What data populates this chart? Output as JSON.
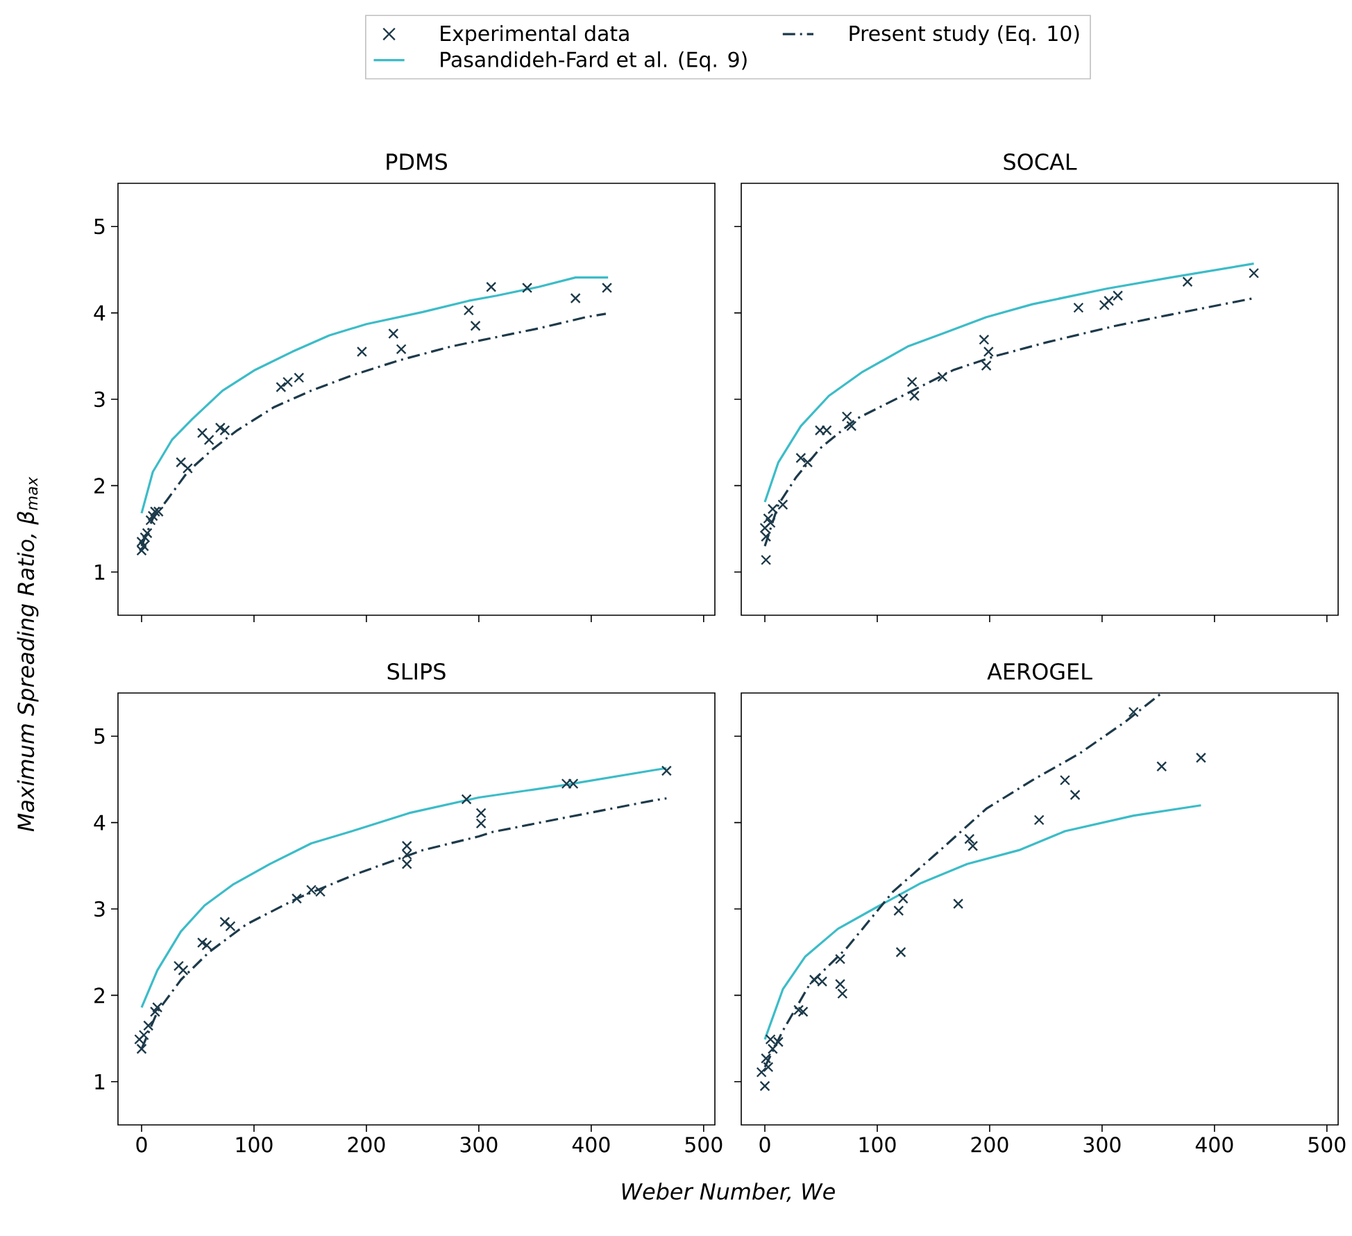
{
  "chart_data": [
    {
      "type": "scatter",
      "title": "PDMS",
      "xlabel": "Weber Number,  We",
      "ylabel": "Maximum Spreading Ratio, β$_{max}$",
      "legend": "top",
      "xlim": [
        -21,
        510
      ],
      "ylim": [
        0.5,
        5.5
      ],
      "xticks": [
        0,
        100,
        200,
        300,
        400,
        500
      ],
      "yticks": [
        1,
        2,
        3,
        4,
        5
      ],
      "tick_labels": "y",
      "series": [
        {
          "name": "Experimental data",
          "marker": "cross",
          "color": "#1d3a4a",
          "x": [
            0,
            2,
            3,
            5,
            0,
            8,
            12,
            15,
            10,
            35,
            41,
            54,
            60,
            70,
            74,
            124,
            130,
            140,
            196,
            224,
            231,
            291,
            297,
            311,
            343,
            386,
            414
          ],
          "values": [
            1.25,
            1.3,
            1.4,
            1.45,
            1.35,
            1.6,
            1.7,
            1.7,
            1.65,
            2.27,
            2.2,
            2.61,
            2.53,
            2.67,
            2.64,
            3.14,
            3.2,
            3.25,
            3.55,
            3.76,
            3.58,
            4.03,
            3.85,
            4.3,
            4.29,
            4.17,
            4.29
          ]
        },
        {
          "name": "Pasandideh-Fard et al. (Eq. 9)",
          "type": "line",
          "line_style": "solid",
          "color": "#3cbcc8",
          "x": [
            0,
            10,
            27,
            45,
            72,
            101,
            134,
            167,
            200,
            250,
            291,
            316,
            353,
            386,
            415
          ],
          "values": [
            1.68,
            2.16,
            2.53,
            2.77,
            3.1,
            3.34,
            3.55,
            3.74,
            3.87,
            4.01,
            4.14,
            4.2,
            4.3,
            4.41,
            4.41
          ]
        },
        {
          "name": "Present study (Eq. 10)",
          "type": "line",
          "line_style": "dashdot",
          "color": "#1d3a4a",
          "x": [
            0,
            10,
            23,
            41,
            64,
            85,
            118,
            151,
            188,
            229,
            275,
            312,
            353,
            395,
            413
          ],
          "values": [
            1.3,
            1.62,
            1.84,
            2.16,
            2.43,
            2.64,
            2.91,
            3.1,
            3.28,
            3.45,
            3.61,
            3.71,
            3.82,
            3.95,
            3.99
          ]
        }
      ]
    },
    {
      "type": "scatter",
      "title": "SOCAL",
      "xlim": [
        -21,
        510
      ],
      "ylim": [
        0.5,
        5.5
      ],
      "xticks": [
        0,
        100,
        200,
        300,
        400,
        500
      ],
      "yticks": [
        1,
        2,
        3,
        4,
        5
      ],
      "tick_labels": false,
      "series": [
        {
          "marker": "cross",
          "color": "#1d3a4a",
          "x": [
            1,
            0,
            3,
            7,
            16,
            1,
            5,
            32,
            38,
            49,
            55,
            73,
            77,
            131,
            133,
            158,
            195,
            199,
            197,
            279,
            302,
            306,
            314,
            376,
            435
          ],
          "values": [
            1.14,
            1.51,
            1.62,
            1.73,
            1.78,
            1.41,
            1.57,
            2.32,
            2.27,
            2.64,
            2.64,
            2.8,
            2.69,
            3.2,
            3.04,
            3.26,
            3.69,
            3.55,
            3.39,
            4.06,
            4.09,
            4.14,
            4.2,
            4.36,
            4.46
          ]
        },
        {
          "type": "line",
          "line_style": "solid",
          "color": "#3cbcc8",
          "x": [
            0,
            12,
            32,
            57,
            86,
            127,
            160,
            197,
            238,
            304,
            361,
            435
          ],
          "values": [
            1.81,
            2.27,
            2.69,
            3.04,
            3.31,
            3.61,
            3.77,
            3.95,
            4.1,
            4.28,
            4.41,
            4.57
          ]
        },
        {
          "type": "line",
          "line_style": "dashdot",
          "color": "#1d3a4a",
          "x": [
            0,
            12,
            28,
            49,
            81,
            127,
            168,
            205,
            251,
            312,
            361,
            435
          ],
          "values": [
            1.3,
            1.78,
            2.1,
            2.43,
            2.77,
            3.07,
            3.34,
            3.5,
            3.66,
            3.85,
            3.98,
            4.17
          ]
        }
      ]
    },
    {
      "type": "scatter",
      "title": "SLIPS",
      "xlim": [
        -21,
        510
      ],
      "ylim": [
        0.5,
        5.5
      ],
      "xticks": [
        0,
        100,
        200,
        300,
        400,
        500
      ],
      "yticks": [
        1,
        2,
        3,
        4,
        5
      ],
      "series": [
        {
          "marker": "cross",
          "color": "#1d3a4a",
          "x": [
            0,
            -2,
            2,
            6,
            12,
            14,
            33,
            37,
            54,
            58,
            74,
            79,
            138,
            151,
            159,
            236,
            236,
            236,
            289,
            302,
            302,
            378,
            384,
            467
          ],
          "values": [
            1.38,
            1.49,
            1.54,
            1.65,
            1.81,
            1.86,
            2.34,
            2.29,
            2.61,
            2.58,
            2.85,
            2.8,
            3.12,
            3.22,
            3.2,
            3.73,
            3.63,
            3.52,
            4.27,
            4.11,
            3.99,
            4.45,
            4.45,
            4.6
          ]
        },
        {
          "type": "line",
          "line_style": "solid",
          "color": "#3cbcc8",
          "x": [
            0,
            14,
            35,
            56,
            81,
            114,
            151,
            192,
            238,
            300,
            374,
            457,
            467
          ],
          "values": [
            1.86,
            2.29,
            2.74,
            3.04,
            3.28,
            3.52,
            3.76,
            3.92,
            4.11,
            4.29,
            4.43,
            4.61,
            4.63
          ]
        },
        {
          "type": "line",
          "line_style": "dashdot",
          "color": "#1d3a4a",
          "x": [
            0,
            14,
            35,
            60,
            93,
            138,
            192,
            250,
            300,
            312,
            374,
            457,
            467
          ],
          "values": [
            1.38,
            1.81,
            2.18,
            2.5,
            2.82,
            3.12,
            3.41,
            3.68,
            3.84,
            3.89,
            4.05,
            4.26,
            4.28
          ]
        }
      ]
    },
    {
      "type": "scatter",
      "title": "AEROGEL",
      "xlim": [
        -21,
        510
      ],
      "ylim": [
        0.5,
        5.5
      ],
      "xticks": [
        0,
        100,
        200,
        300,
        400,
        500
      ],
      "yticks": [
        1,
        2,
        3,
        4,
        5
      ],
      "tick_labels": "x",
      "series": [
        {
          "marker": "cross",
          "color": "#1d3a4a",
          "x": [
            0,
            -3,
            1,
            3,
            7,
            12,
            5,
            30,
            34,
            44,
            51,
            67,
            69,
            67,
            119,
            123,
            121,
            172,
            182,
            185,
            244,
            267,
            276,
            328,
            353,
            388
          ],
          "values": [
            0.95,
            1.11,
            1.27,
            1.17,
            1.38,
            1.46,
            1.49,
            1.83,
            1.81,
            2.18,
            2.16,
            2.13,
            2.02,
            2.42,
            2.98,
            3.12,
            2.5,
            3.06,
            3.81,
            3.73,
            4.03,
            4.49,
            4.32,
            5.28,
            4.65,
            4.75
          ]
        },
        {
          "type": "line",
          "line_style": "solid",
          "color": "#3cbcc8",
          "x": [
            0,
            16,
            36,
            65,
            98,
            139,
            180,
            226,
            267,
            328,
            388
          ],
          "values": [
            1.49,
            2.07,
            2.45,
            2.77,
            3.01,
            3.3,
            3.52,
            3.68,
            3.9,
            4.08,
            4.2
          ]
        },
        {
          "type": "line",
          "line_style": "dashdot",
          "color": "#1d3a4a",
          "x": [
            0,
            16,
            40,
            73,
            114,
            156,
            197,
            238,
            280,
            321,
            353
          ],
          "values": [
            1.17,
            1.59,
            2.13,
            2.55,
            3.2,
            3.68,
            4.16,
            4.49,
            4.8,
            5.17,
            5.5
          ]
        }
      ]
    }
  ]
}
